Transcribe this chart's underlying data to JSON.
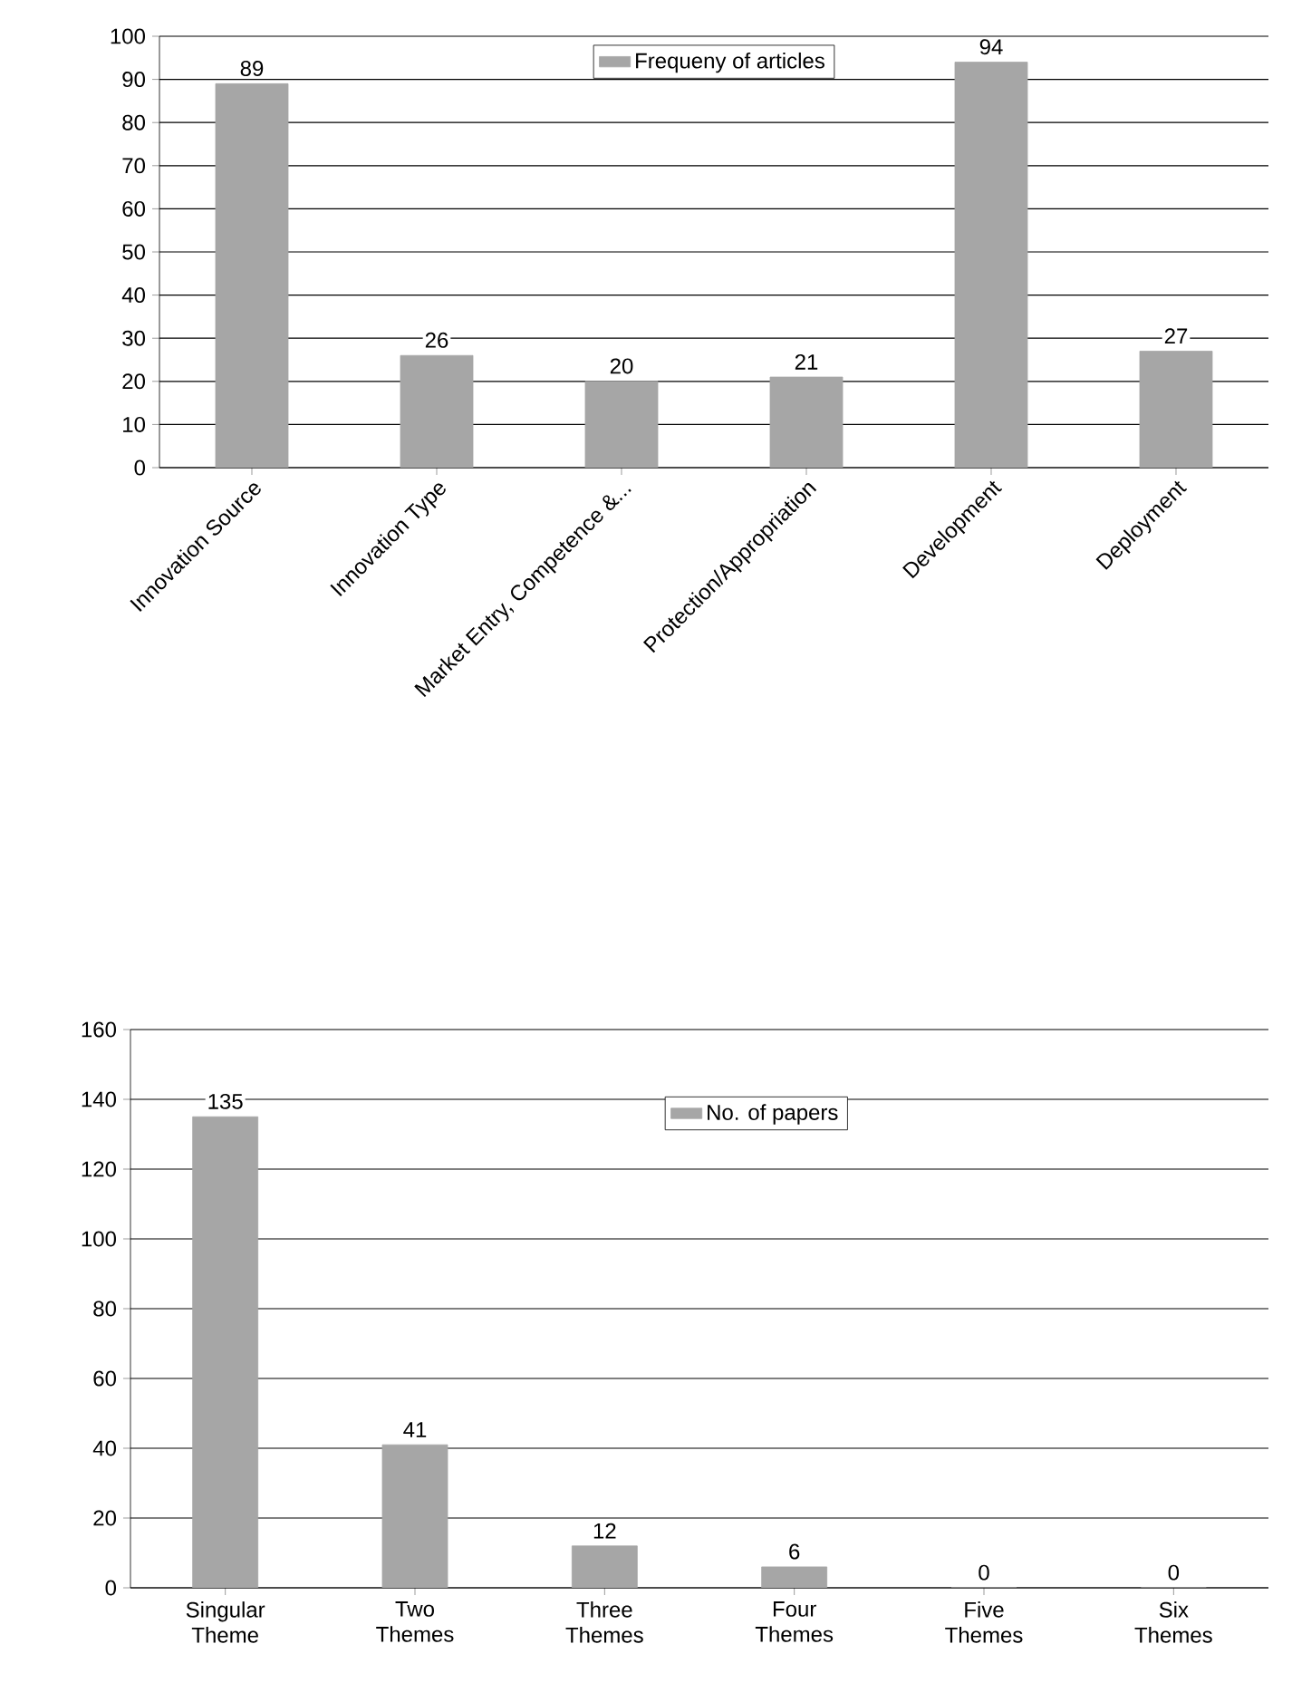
{
  "chart_data": [
    {
      "type": "bar",
      "categories": [
        "Innovation Source",
        "Innovation Type",
        "Market Entry, Competence &...",
        "Protection/Appropriation",
        "Development",
        "Deployment"
      ],
      "series": [
        {
          "name": "Frequeny of articles",
          "color": "#a6a6a6",
          "values": [
            89,
            26,
            20,
            21,
            94,
            27
          ]
        }
      ],
      "ylim": [
        0,
        100
      ],
      "yticks": [
        0,
        10,
        20,
        30,
        40,
        50,
        60,
        70,
        80,
        90,
        100
      ],
      "grid": "y",
      "legend": "top",
      "data_labels": true
    },
    {
      "type": "bar",
      "categories": [
        "Singular Theme",
        "Two Themes",
        "Three Themes",
        "Four Themes",
        "Five Themes",
        "Six Themes"
      ],
      "series": [
        {
          "name": "No. of papers",
          "color": "#a6a6a6",
          "values": [
            135,
            41,
            12,
            6,
            0,
            0
          ]
        }
      ],
      "ylim": [
        0,
        160
      ],
      "yticks": [
        0,
        20,
        40,
        60,
        80,
        100,
        120,
        140,
        160
      ],
      "grid": "y",
      "legend": "top",
      "data_labels": true
    }
  ]
}
